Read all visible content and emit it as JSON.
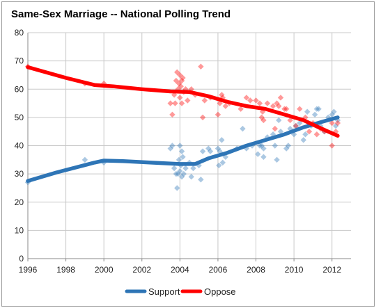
{
  "chart_data": {
    "type": "scatter",
    "title": "Same-Sex Marriage -- National Polling Trend",
    "xlabel": "",
    "ylabel": "",
    "xlim": [
      1996,
      2013
    ],
    "ylim": [
      0,
      80
    ],
    "xticks": [
      1996,
      1998,
      2000,
      2002,
      2004,
      2006,
      2008,
      2010,
      2012
    ],
    "yticks": [
      0,
      10,
      20,
      30,
      40,
      50,
      60,
      70,
      80
    ],
    "grid": true,
    "legend": "bottom",
    "series": [
      {
        "name": "Support",
        "color": "#2e75b6",
        "points": [
          [
            1996.0,
            27
          ],
          [
            1999.0,
            35
          ],
          [
            2000.0,
            34
          ],
          [
            2003.5,
            39
          ],
          [
            2003.6,
            40
          ],
          [
            2003.7,
            32
          ],
          [
            2003.8,
            30
          ],
          [
            2003.85,
            25
          ],
          [
            2003.9,
            30
          ],
          [
            2003.95,
            35
          ],
          [
            2004.0,
            40
          ],
          [
            2004.0,
            31
          ],
          [
            2004.05,
            33
          ],
          [
            2004.1,
            38
          ],
          [
            2004.1,
            29
          ],
          [
            2004.15,
            36
          ],
          [
            2004.2,
            30
          ],
          [
            2004.3,
            32
          ],
          [
            2004.5,
            34
          ],
          [
            2004.6,
            29
          ],
          [
            2004.7,
            32
          ],
          [
            2005.0,
            33
          ],
          [
            2005.1,
            28
          ],
          [
            2005.2,
            38
          ],
          [
            2005.5,
            39
          ],
          [
            2005.6,
            38
          ],
          [
            2006.0,
            39
          ],
          [
            2006.05,
            33
          ],
          [
            2006.1,
            38
          ],
          [
            2006.2,
            42
          ],
          [
            2006.25,
            34
          ],
          [
            2006.4,
            36
          ],
          [
            2007.0,
            39
          ],
          [
            2007.3,
            46
          ],
          [
            2007.5,
            39
          ],
          [
            2007.8,
            40
          ],
          [
            2008.1,
            37
          ],
          [
            2008.2,
            40
          ],
          [
            2008.3,
            40
          ],
          [
            2008.4,
            39
          ],
          [
            2008.4,
            36
          ],
          [
            2008.6,
            43
          ],
          [
            2008.9,
            44
          ],
          [
            2009.0,
            40
          ],
          [
            2009.1,
            35
          ],
          [
            2009.2,
            49
          ],
          [
            2009.3,
            45
          ],
          [
            2009.6,
            39
          ],
          [
            2009.7,
            40
          ],
          [
            2009.8,
            46
          ],
          [
            2010.0,
            44
          ],
          [
            2010.1,
            47
          ],
          [
            2010.3,
            48
          ],
          [
            2010.5,
            42
          ],
          [
            2010.6,
            44
          ],
          [
            2010.7,
            52
          ],
          [
            2010.9,
            47
          ],
          [
            2011.1,
            51
          ],
          [
            2011.2,
            53
          ],
          [
            2011.3,
            53
          ],
          [
            2011.4,
            47
          ],
          [
            2011.6,
            45
          ],
          [
            2011.8,
            50
          ],
          [
            2012.0,
            51
          ],
          [
            2012.1,
            52
          ],
          [
            2012.2,
            47
          ],
          [
            2012.3,
            49
          ]
        ],
        "trend": [
          [
            1996.0,
            27.5
          ],
          [
            1997.5,
            30.5
          ],
          [
            1999.5,
            34.0
          ],
          [
            2000.0,
            34.7
          ],
          [
            2001.0,
            34.5
          ],
          [
            2002.5,
            34.0
          ],
          [
            2004.0,
            33.5
          ],
          [
            2004.8,
            33.5
          ],
          [
            2005.5,
            35.5
          ],
          [
            2006.5,
            37.5
          ],
          [
            2007.5,
            40.0
          ],
          [
            2008.5,
            42.0
          ],
          [
            2009.5,
            44.0
          ],
          [
            2010.5,
            46.5
          ],
          [
            2011.5,
            48.5
          ],
          [
            2012.3,
            50.0
          ]
        ]
      },
      {
        "name": "Oppose",
        "color": "#ff0000",
        "points": [
          [
            1996.0,
            68
          ],
          [
            1999.0,
            62
          ],
          [
            2000.0,
            62
          ],
          [
            2003.5,
            55
          ],
          [
            2003.6,
            51
          ],
          [
            2003.7,
            58
          ],
          [
            2003.75,
            55
          ],
          [
            2003.8,
            63
          ],
          [
            2003.85,
            66
          ],
          [
            2003.9,
            60
          ],
          [
            2003.95,
            62
          ],
          [
            2004.0,
            57
          ],
          [
            2004.0,
            65
          ],
          [
            2004.05,
            61
          ],
          [
            2004.1,
            55
          ],
          [
            2004.1,
            63
          ],
          [
            2004.15,
            64
          ],
          [
            2004.2,
            59
          ],
          [
            2004.3,
            60
          ],
          [
            2004.4,
            56
          ],
          [
            2004.6,
            60
          ],
          [
            2004.8,
            58
          ],
          [
            2005.1,
            68
          ],
          [
            2005.2,
            50
          ],
          [
            2005.3,
            56
          ],
          [
            2005.6,
            57
          ],
          [
            2006.0,
            51
          ],
          [
            2006.1,
            55
          ],
          [
            2006.2,
            58
          ],
          [
            2006.25,
            57
          ],
          [
            2006.4,
            54
          ],
          [
            2006.6,
            55
          ],
          [
            2007.2,
            53
          ],
          [
            2007.5,
            57
          ],
          [
            2007.7,
            56
          ],
          [
            2008.0,
            56
          ],
          [
            2008.2,
            55
          ],
          [
            2008.3,
            50
          ],
          [
            2008.35,
            52
          ],
          [
            2008.4,
            49
          ],
          [
            2008.6,
            55
          ],
          [
            2008.9,
            54
          ],
          [
            2009.0,
            46
          ],
          [
            2009.1,
            55
          ],
          [
            2009.2,
            54
          ],
          [
            2009.3,
            57
          ],
          [
            2009.5,
            53
          ],
          [
            2009.6,
            53
          ],
          [
            2009.8,
            49
          ],
          [
            2010.1,
            47
          ],
          [
            2010.3,
            53
          ],
          [
            2010.6,
            50
          ],
          [
            2010.8,
            45
          ],
          [
            2011.0,
            48
          ],
          [
            2011.2,
            44
          ],
          [
            2011.4,
            46
          ],
          [
            2011.6,
            45
          ],
          [
            2012.0,
            40
          ],
          [
            2012.0,
            48
          ],
          [
            2012.2,
            45
          ],
          [
            2012.3,
            48
          ]
        ],
        "trend": [
          [
            1996.0,
            67.8
          ],
          [
            1998.0,
            64.0
          ],
          [
            1999.5,
            61.5
          ],
          [
            2000.5,
            61.0
          ],
          [
            2002.0,
            60.0
          ],
          [
            2003.5,
            59.2
          ],
          [
            2004.5,
            59.0
          ],
          [
            2005.5,
            57.5
          ],
          [
            2006.5,
            55.5
          ],
          [
            2007.5,
            54.0
          ],
          [
            2008.5,
            53.0
          ],
          [
            2009.5,
            51.0
          ],
          [
            2010.5,
            49.0
          ],
          [
            2011.3,
            46.5
          ],
          [
            2011.8,
            45.0
          ],
          [
            2012.3,
            43.5
          ]
        ]
      }
    ]
  }
}
